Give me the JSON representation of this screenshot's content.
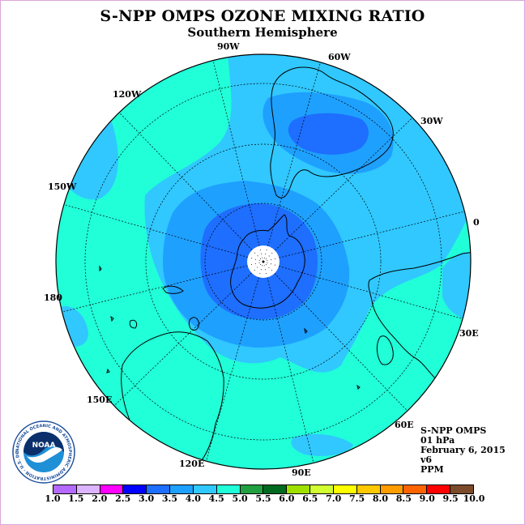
{
  "title": "S-NPP OMPS OZONE MIXING RATIO",
  "subtitle": "Southern Hemisphere",
  "longitude_labels": [
    "90W",
    "60W",
    "30W",
    "0",
    "120W",
    "150W",
    "180",
    "30E",
    "150E",
    "60E",
    "120E",
    "90E"
  ],
  "info": {
    "instrument": "S-NPP OMPS",
    "level": "01 hPa",
    "date": "February 6, 2015",
    "version": "v6",
    "units": "PPM"
  },
  "logo": {
    "text": "NOAA",
    "ring_text": "NATIONAL OCEANIC AND ATMOSPHERIC ADMINISTRATION · U.S. DEPARTMENT OF COMMERCE"
  },
  "legend": {
    "ticks": [
      "1.0",
      "1.5",
      "2.0",
      "2.5",
      "3.0",
      "3.5",
      "4.0",
      "4.5",
      "5.0",
      "5.5",
      "6.0",
      "6.5",
      "7.0",
      "7.5",
      "8.0",
      "8.5",
      "9.0",
      "9.5",
      "10.0"
    ],
    "colors": [
      "#b469ff",
      "#dcb4ff",
      "#ff00ff",
      "#0000ff",
      "#1e6eff",
      "#1ea0ff",
      "#30c8ff",
      "#20ffd8",
      "#20a040",
      "#006a20",
      "#a0e000",
      "#d2ff30",
      "#ffff00",
      "#ffc800",
      "#ff9c00",
      "#ff6400",
      "#ff0000",
      "#7a4a2a"
    ]
  },
  "map_colors": {
    "range_3_0_3_5": "#1e6eff",
    "range_3_5_4_0": "#1ea0ff",
    "range_4_0_4_5": "#30c8ff",
    "range_4_5_5_0": "#20ffd8"
  }
}
